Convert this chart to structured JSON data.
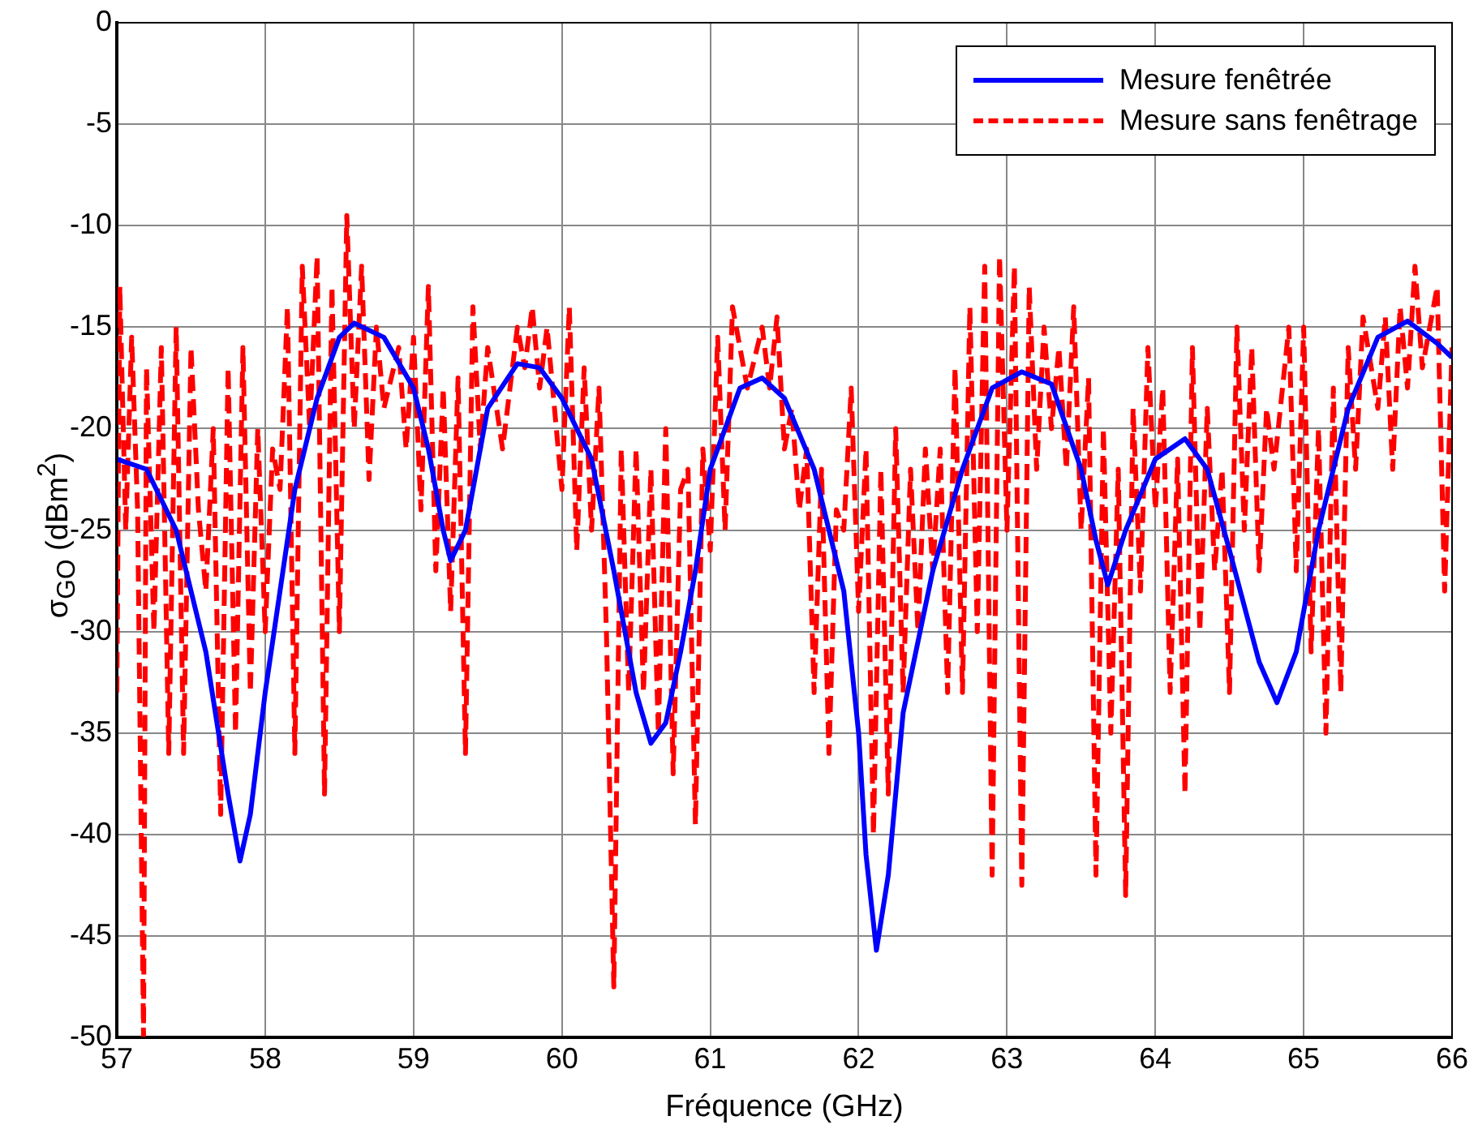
{
  "chart_data": {
    "type": "line",
    "xlabel": "Fréquence (GHz)",
    "ylabel": "σ$_{GO}$ (dBm$^{2}$)",
    "xlim": [
      57,
      66
    ],
    "xticks": [
      57,
      58,
      59,
      60,
      61,
      62,
      63,
      64,
      65,
      66
    ],
    "ylim": [
      -50,
      0
    ],
    "yticks": [
      -50,
      -45,
      -40,
      -35,
      -30,
      -25,
      -20,
      -15,
      -10,
      -5,
      0
    ],
    "grid": true,
    "legend": "top right",
    "marker": "none",
    "series": [
      {
        "name": "Mesure fenêtrée",
        "color": "#0000ff",
        "line_style": "solid",
        "x": [
          57.0,
          57.2,
          57.4,
          57.6,
          57.75,
          57.83,
          57.9,
          58.0,
          58.1,
          58.2,
          58.35,
          58.5,
          58.6,
          58.8,
          59.0,
          59.1,
          59.2,
          59.25,
          59.35,
          59.5,
          59.7,
          59.85,
          60.0,
          60.2,
          60.35,
          60.5,
          60.6,
          60.7,
          60.8,
          60.9,
          61.0,
          61.2,
          61.35,
          61.5,
          61.7,
          61.9,
          62.0,
          62.05,
          62.12,
          62.2,
          62.3,
          62.5,
          62.7,
          62.9,
          63.1,
          63.3,
          63.5,
          63.6,
          63.68,
          63.8,
          64.0,
          64.2,
          64.35,
          64.5,
          64.7,
          64.82,
          64.95,
          65.1,
          65.3,
          65.5,
          65.7,
          65.9,
          66.0
        ],
        "values": [
          -21.5,
          -22,
          -25,
          -31,
          -38,
          -41.3,
          -39,
          -33,
          -28,
          -23,
          -18.5,
          -15.5,
          -14.8,
          -15.5,
          -18,
          -21,
          -25,
          -26.5,
          -25,
          -19,
          -16.8,
          -17,
          -18.5,
          -21.5,
          -27,
          -33,
          -35.5,
          -34.5,
          -31,
          -27,
          -22,
          -18,
          -17.5,
          -18.5,
          -22,
          -28,
          -35,
          -41,
          -45.7,
          -42,
          -34,
          -27,
          -22,
          -18,
          -17.2,
          -17.8,
          -22,
          -25.5,
          -27.7,
          -25,
          -21.5,
          -20.5,
          -22,
          -26,
          -31.5,
          -33.5,
          -31,
          -25,
          -19,
          -15.5,
          -14.7,
          -15.8,
          -16.5
        ]
      },
      {
        "name": "Mesure sans fenêtrage",
        "color": "#ff0000",
        "line_style": "dashed",
        "x": [
          57.0,
          57.02,
          57.06,
          57.1,
          57.14,
          57.18,
          57.2,
          57.25,
          57.3,
          57.35,
          57.4,
          57.45,
          57.5,
          57.55,
          57.6,
          57.65,
          57.7,
          57.75,
          57.8,
          57.85,
          57.9,
          57.95,
          58.0,
          58.05,
          58.1,
          58.15,
          58.2,
          58.25,
          58.3,
          58.35,
          58.4,
          58.45,
          58.5,
          58.55,
          58.6,
          58.65,
          58.7,
          58.75,
          58.8,
          58.9,
          58.95,
          59.0,
          59.05,
          59.1,
          59.15,
          59.2,
          59.25,
          59.3,
          59.35,
          59.4,
          59.45,
          59.5,
          59.6,
          59.7,
          59.75,
          59.8,
          59.85,
          59.9,
          60.0,
          60.05,
          60.1,
          60.15,
          60.2,
          60.25,
          60.3,
          60.35,
          60.4,
          60.45,
          60.5,
          60.55,
          60.6,
          60.65,
          60.7,
          60.75,
          60.8,
          60.85,
          60.9,
          60.95,
          61.0,
          61.05,
          61.1,
          61.15,
          61.25,
          61.35,
          61.4,
          61.45,
          61.5,
          61.55,
          61.6,
          61.65,
          61.7,
          61.75,
          61.8,
          61.85,
          61.9,
          61.95,
          62.0,
          62.05,
          62.1,
          62.15,
          62.2,
          62.25,
          62.3,
          62.35,
          62.4,
          62.45,
          62.5,
          62.55,
          62.6,
          62.65,
          62.7,
          62.75,
          62.8,
          62.85,
          62.9,
          62.95,
          63.0,
          63.05,
          63.1,
          63.15,
          63.2,
          63.25,
          63.3,
          63.35,
          63.4,
          63.45,
          63.5,
          63.55,
          63.6,
          63.65,
          63.7,
          63.75,
          63.8,
          63.85,
          63.9,
          63.95,
          64.0,
          64.05,
          64.1,
          64.15,
          64.2,
          64.25,
          64.3,
          64.35,
          64.4,
          64.45,
          64.5,
          64.55,
          64.6,
          64.65,
          64.7,
          64.75,
          64.8,
          64.9,
          64.95,
          65.0,
          65.05,
          65.1,
          65.15,
          65.2,
          65.25,
          65.3,
          65.35,
          65.4,
          65.5,
          65.55,
          65.6,
          65.65,
          65.7,
          65.75,
          65.8,
          65.9,
          65.95,
          66.0
        ],
        "values": [
          -33,
          -13,
          -25,
          -15.5,
          -24,
          -50,
          -17,
          -30,
          -16,
          -36,
          -15,
          -36,
          -16,
          -24,
          -28,
          -20,
          -39,
          -17,
          -35,
          -16,
          -33,
          -20,
          -30,
          -21,
          -23,
          -14,
          -36,
          -12,
          -20,
          -11.5,
          -38,
          -13,
          -30,
          -9.5,
          -20,
          -12,
          -22.5,
          -15,
          -19,
          -16,
          -21,
          -15.5,
          -24,
          -13,
          -27,
          -18,
          -29,
          -17.5,
          -36,
          -14,
          -21,
          -16,
          -21,
          -15,
          -17,
          -14,
          -18,
          -15,
          -23,
          -14,
          -26,
          -17,
          -25,
          -18,
          -30,
          -47.5,
          -21,
          -33,
          -21,
          -33,
          -22,
          -35,
          -20,
          -37,
          -23,
          -22,
          -39.5,
          -21,
          -26,
          -15.5,
          -25,
          -14,
          -18,
          -15,
          -18,
          -14.5,
          -21,
          -19,
          -24,
          -21,
          -33,
          -22,
          -36,
          -24,
          -25,
          -18,
          -29,
          -21,
          -40,
          -22,
          -38,
          -20,
          -33,
          -22,
          -30,
          -21,
          -27,
          -21,
          -33,
          -17,
          -33,
          -14,
          -30,
          -12,
          -42,
          -11.5,
          -25,
          -12,
          -42.5,
          -13,
          -22,
          -15,
          -20,
          -16,
          -22,
          -14,
          -25,
          -17.5,
          -42,
          -20,
          -35,
          -22,
          -43,
          -19,
          -28,
          -16,
          -24,
          -18,
          -33,
          -21.5,
          -38,
          -16,
          -30,
          -19,
          -27,
          -22,
          -33,
          -15,
          -25,
          -16,
          -27,
          -19,
          -22,
          -15,
          -27,
          -15,
          -31,
          -20,
          -35,
          -18,
          -33,
          -16,
          -22,
          -14.5,
          -19,
          -14.5,
          -22,
          -14,
          -18,
          -12,
          -17,
          -13,
          -28,
          -16
        ]
      }
    ]
  }
}
